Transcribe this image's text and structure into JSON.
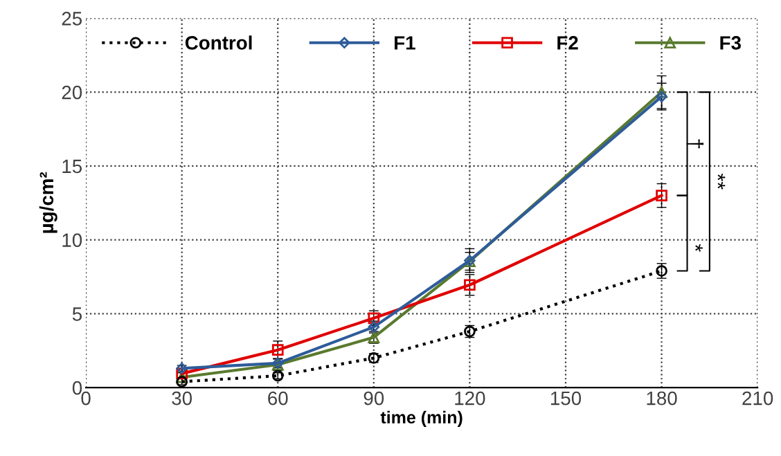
{
  "chart_data": {
    "type": "line",
    "xlabel": "time (min)",
    "ylabel": "µg/cm²",
    "x": [
      30,
      60,
      90,
      120,
      180
    ],
    "xlim": [
      0,
      210
    ],
    "xticks": [
      0,
      30,
      60,
      90,
      120,
      150,
      180,
      210
    ],
    "ylim": [
      0,
      25
    ],
    "yticks": [
      0,
      5,
      10,
      15,
      20,
      25
    ],
    "grid": true,
    "legend": "top",
    "series": [
      {
        "name": "Control",
        "color": "#000000",
        "marker": "circle",
        "line_style": "dotted",
        "values": [
          0.4,
          0.8,
          2.0,
          3.8,
          7.9
        ],
        "errors": [
          0.2,
          0.2,
          0.3,
          0.4,
          0.5
        ]
      },
      {
        "name": "F1",
        "color": "#2e5c9a",
        "marker": "diamond",
        "line_style": "solid",
        "values": [
          1.3,
          1.65,
          4.1,
          8.6,
          19.7
        ],
        "errors": [
          0.2,
          0.3,
          0.4,
          0.8,
          0.9
        ]
      },
      {
        "name": "F2",
        "color": "#e00000",
        "marker": "square",
        "line_style": "solid",
        "values": [
          0.95,
          2.55,
          4.7,
          6.95,
          13.0
        ],
        "errors": [
          0.3,
          0.6,
          0.5,
          0.7,
          0.8
        ]
      },
      {
        "name": "F3",
        "color": "#5a7a2e",
        "marker": "triangle",
        "line_style": "solid",
        "values": [
          0.7,
          1.55,
          3.4,
          8.55,
          20.0
        ],
        "errors": [
          0.3,
          0.4,
          0.4,
          0.6,
          1.1
        ]
      }
    ],
    "annotations": [
      "†",
      "*",
      "**"
    ]
  }
}
